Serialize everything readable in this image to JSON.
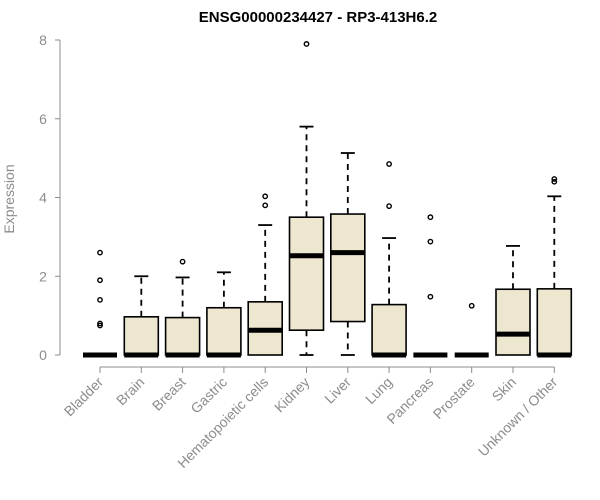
{
  "chart_data": {
    "type": "box",
    "title": "ENSG00000234427 - RP3-413H6.2",
    "xlabel": "",
    "ylabel": "Expression",
    "ylim": [
      0,
      8
    ],
    "yticks": [
      "0",
      "2",
      "4",
      "6",
      "8"
    ],
    "grid": false,
    "box_color": "#ede7cf",
    "axis_color": "#8c8c8c",
    "categories": [
      "Bladder",
      "Brain",
      "Breast",
      "Gastric",
      "Hematopoietic cells",
      "Kidney",
      "Liver",
      "Lung",
      "Pancreas",
      "Prostate",
      "Skin",
      "Unknown / Other"
    ],
    "boxes": [
      {
        "category": "Bladder",
        "min": 0,
        "q1": 0,
        "median": 0,
        "q3": 0,
        "max": 0,
        "outliers": [
          0.75,
          0.8,
          1.4,
          1.9,
          2.6
        ]
      },
      {
        "category": "Brain",
        "min": 0,
        "q1": 0,
        "median": 0,
        "q3": 0.97,
        "max": 2.0,
        "outliers": []
      },
      {
        "category": "Breast",
        "min": 0,
        "q1": 0,
        "median": 0,
        "q3": 0.95,
        "max": 1.97,
        "outliers": [
          2.37
        ]
      },
      {
        "category": "Gastric",
        "min": 0,
        "q1": 0,
        "median": 0,
        "q3": 1.2,
        "max": 2.1,
        "outliers": []
      },
      {
        "category": "Hematopoietic cells",
        "min": 0,
        "q1": 0,
        "median": 0.63,
        "q3": 1.35,
        "max": 3.3,
        "outliers": [
          3.8,
          4.03
        ]
      },
      {
        "category": "Kidney",
        "min": 0,
        "q1": 0.63,
        "median": 2.52,
        "q3": 3.5,
        "max": 5.8,
        "outliers": [
          7.9
        ]
      },
      {
        "category": "Liver",
        "min": 0,
        "q1": 0.85,
        "median": 2.6,
        "q3": 3.58,
        "max": 5.13,
        "outliers": []
      },
      {
        "category": "Lung",
        "min": 0,
        "q1": 0,
        "median": 0,
        "q3": 1.28,
        "max": 2.97,
        "outliers": [
          3.78,
          4.85
        ]
      },
      {
        "category": "Pancreas",
        "min": 0,
        "q1": 0,
        "median": 0,
        "q3": 0,
        "max": 0,
        "outliers": [
          1.48,
          2.88,
          3.5
        ]
      },
      {
        "category": "Prostate",
        "min": 0,
        "q1": 0,
        "median": 0,
        "q3": 0,
        "max": 0,
        "outliers": [
          1.25
        ]
      },
      {
        "category": "Skin",
        "min": 0,
        "q1": 0,
        "median": 0.53,
        "q3": 1.67,
        "max": 2.77,
        "outliers": []
      },
      {
        "category": "Unknown / Other",
        "min": 0,
        "q1": 0,
        "median": 0,
        "q3": 1.68,
        "max": 4.03,
        "outliers": [
          4.4,
          4.47
        ]
      }
    ]
  }
}
